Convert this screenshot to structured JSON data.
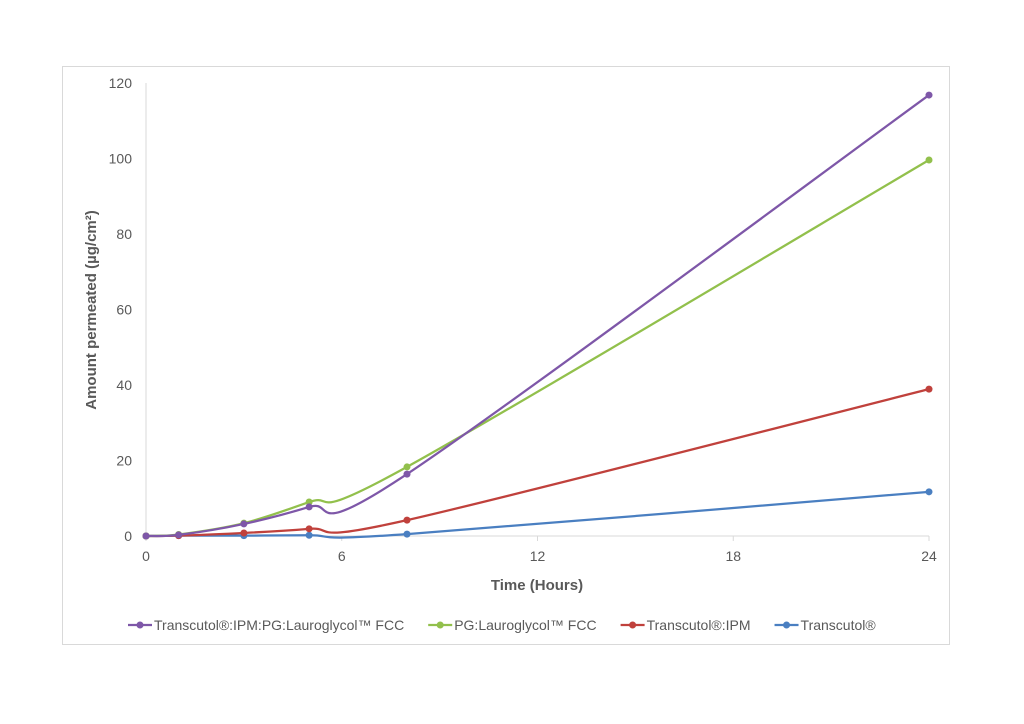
{
  "chart_data": {
    "type": "line",
    "title": "",
    "xlabel": "Time (Hours)",
    "ylabel": "Amount permeated (µg/cm²)",
    "xlim": [
      0,
      24
    ],
    "ylim": [
      0,
      120
    ],
    "xticks": [
      0,
      6,
      12,
      18,
      24
    ],
    "yticks": [
      0,
      20,
      40,
      60,
      80,
      100,
      120
    ],
    "grid": false,
    "smooth": true,
    "legend_position": "bottom",
    "x": [
      0,
      1,
      3,
      5,
      8,
      24
    ],
    "series": [
      {
        "name": "Transcutol®:IPM:PG:Lauroglycol™ FCC",
        "color": "#7e57a8",
        "values": [
          0,
          0.3,
          3.2,
          7.7,
          16.4,
          116.8
        ]
      },
      {
        "name": "PG:Lauroglycol™ FCC",
        "color": "#92c04c",
        "values": [
          0,
          0.4,
          3.4,
          9.0,
          18.3,
          99.6
        ]
      },
      {
        "name": "Transcutol®:IPM",
        "color": "#c0413c",
        "values": [
          0,
          0.1,
          0.8,
          1.9,
          4.2,
          38.9
        ]
      },
      {
        "name": "Transcutol®",
        "color": "#4a7fc1",
        "values": [
          0,
          0.1,
          0.1,
          0.2,
          0.5,
          11.7
        ]
      }
    ]
  }
}
